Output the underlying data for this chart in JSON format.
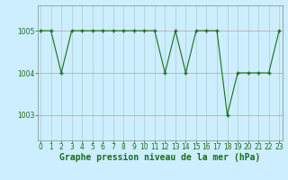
{
  "x": [
    0,
    1,
    2,
    3,
    4,
    5,
    6,
    7,
    8,
    9,
    10,
    11,
    12,
    13,
    14,
    15,
    16,
    17,
    18,
    19,
    20,
    21,
    22,
    23
  ],
  "y": [
    1005,
    1005,
    1004,
    1005,
    1005,
    1005,
    1005,
    1005,
    1005,
    1005,
    1005,
    1005,
    1004,
    1005,
    1004,
    1005,
    1005,
    1005,
    1003,
    1004,
    1004,
    1004,
    1004,
    1005
  ],
  "line_color": "#1a6e1a",
  "marker_color": "#1a6e1a",
  "bg_color": "#cceeff",
  "hgrid_color": "#cc9999",
  "vgrid_color": "#aacccc",
  "xlabel": "Graphe pression niveau de la mer (hPa)",
  "ylim": [
    1002.4,
    1005.6
  ],
  "yticks": [
    1003,
    1004,
    1005
  ],
  "xticks": [
    0,
    1,
    2,
    3,
    4,
    5,
    6,
    7,
    8,
    9,
    10,
    11,
    12,
    13,
    14,
    15,
    16,
    17,
    18,
    19,
    20,
    21,
    22,
    23
  ],
  "tick_label_color": "#1a6e1a",
  "xlabel_color": "#1a6e1a",
  "xlabel_fontsize": 7.0,
  "tick_fontsize": 5.5,
  "spine_color": "#888888"
}
